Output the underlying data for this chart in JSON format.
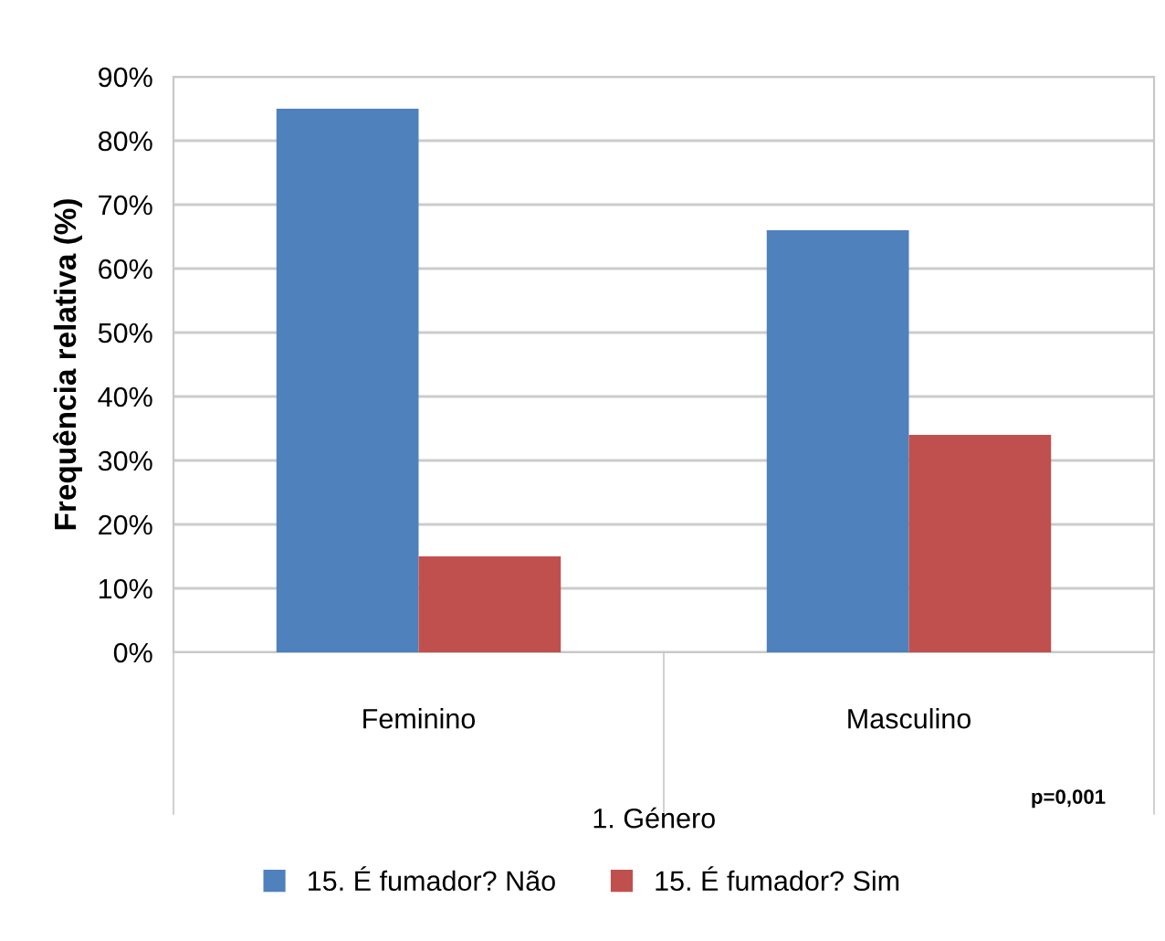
{
  "chart_data": {
    "type": "bar",
    "xlabel": "1. Género",
    "ylabel": "Frequência relativa (%)",
    "categories": [
      "Feminino",
      "Masculino"
    ],
    "series": [
      {
        "name": "15. É fumador? Não",
        "color": "#4f81bd",
        "values": [
          85,
          66
        ]
      },
      {
        "name": "15. É fumador? Sim",
        "color": "#c0504d",
        "values": [
          15,
          34
        ]
      }
    ],
    "ylim": [
      0,
      90
    ],
    "yticks": [
      {
        "value": 0,
        "label": "0%"
      },
      {
        "value": 10,
        "label": "10%"
      },
      {
        "value": 20,
        "label": "20%"
      },
      {
        "value": 30,
        "label": "30%"
      },
      {
        "value": 40,
        "label": "40%"
      },
      {
        "value": 50,
        "label": "50%"
      },
      {
        "value": 60,
        "label": "60%"
      },
      {
        "value": 70,
        "label": "70%"
      },
      {
        "value": 80,
        "label": "80%"
      },
      {
        "value": 90,
        "label": "90%"
      }
    ],
    "grid": "y",
    "legend": "bottom",
    "annotations": [
      "p=0,001"
    ]
  }
}
